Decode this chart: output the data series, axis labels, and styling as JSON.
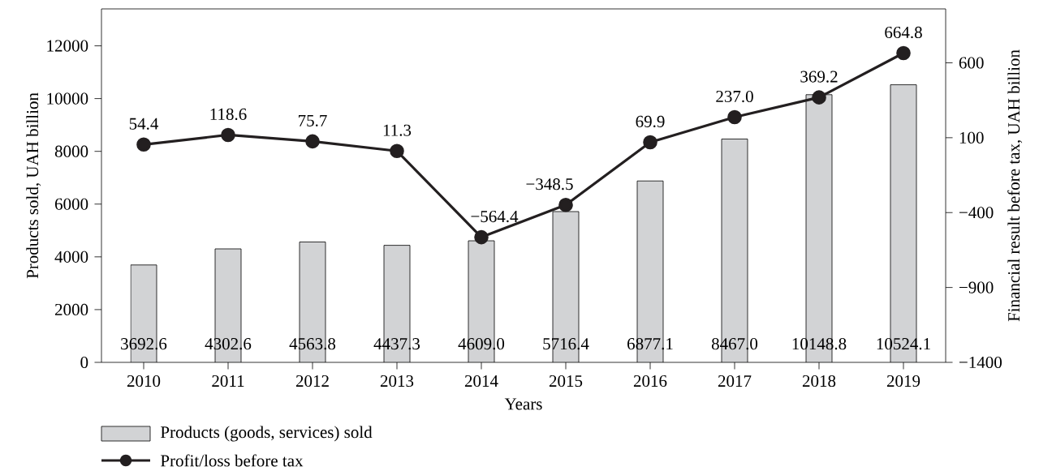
{
  "chart_data": {
    "type": "bar",
    "xlabel": "Years",
    "ylabel": "Products sold, UAH billion",
    "y2label": "Financial result before tax, UAH billion",
    "categories": [
      "2010",
      "2011",
      "2012",
      "2013",
      "2014",
      "2015",
      "2016",
      "2017",
      "2018",
      "2019"
    ],
    "series": [
      {
        "name": "Products (goods, services) sold",
        "color": "#d2d3d5",
        "values": [
          3692.6,
          4302.6,
          4563.8,
          4437.3,
          4609.0,
          5716.4,
          6877.1,
          8467.0,
          10148.8,
          10524.1
        ],
        "value_labels": [
          "3692.6",
          "4302.6",
          "4563.8",
          "4437.3",
          "4609.0",
          "5716.4",
          "6877.1",
          "8467.0",
          "10148.8",
          "10524.1"
        ]
      },
      {
        "name": "Profit/loss before tax",
        "type": "line",
        "axis": "y2",
        "color": "#231f20",
        "values": [
          54.4,
          118.6,
          75.7,
          11.3,
          -564.4,
          -348.5,
          69.9,
          237.0,
          369.2,
          664.8
        ],
        "value_labels": [
          "54.4",
          "118.6",
          "75.7",
          "11.3",
          "−564.4",
          "−348.5",
          "69.9",
          "237.0",
          "369.2",
          "664.8"
        ]
      }
    ],
    "ylim": [
      0,
      13400
    ],
    "yticks": [
      0,
      2000,
      4000,
      6000,
      8000,
      10000,
      12000
    ],
    "y2lim": [
      -1400,
      960
    ],
    "y2ticks": [
      {
        "value": -1400,
        "label": "−1400"
      },
      {
        "value": -900,
        "label": "−900"
      },
      {
        "value": -400,
        "label": "−400"
      },
      100,
      600
    ],
    "marker": "circle",
    "line_style": "solid",
    "grid": false,
    "legend": "bottom left"
  }
}
